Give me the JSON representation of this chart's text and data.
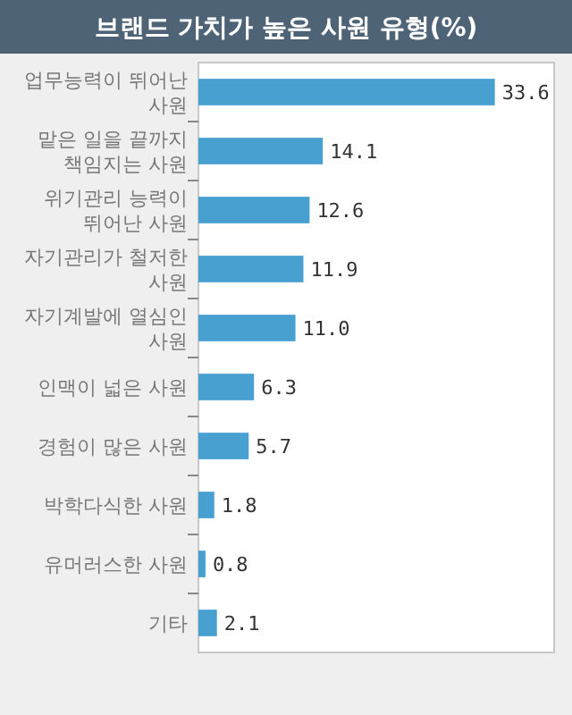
{
  "chart_data": {
    "type": "bar",
    "orientation": "horizontal",
    "title": "브랜드 가치가 높은 사원 유형(%)",
    "categories": [
      "업무능력이 뛰어난 사원",
      "맡은 일을 끝까지 책임지는 사원",
      "위기관리 능력이 뛰어난 사원",
      "자기관리가 철저한 사원",
      "자기계발에 열심인 사원",
      "인맥이 넓은 사원",
      "경험이 많은 사원",
      "박학다식한 사원",
      "유머러스한 사원",
      "기타"
    ],
    "values": [
      33.6,
      14.1,
      12.6,
      11.9,
      11.0,
      6.3,
      5.7,
      1.8,
      0.8,
      2.1
    ],
    "value_labels": [
      "33.6",
      "14.1",
      "12.6",
      "11.9",
      "11.0",
      "6.3",
      "5.7",
      "1.8",
      "0.8",
      "2.1"
    ],
    "color": "#48a0d0"
  }
}
